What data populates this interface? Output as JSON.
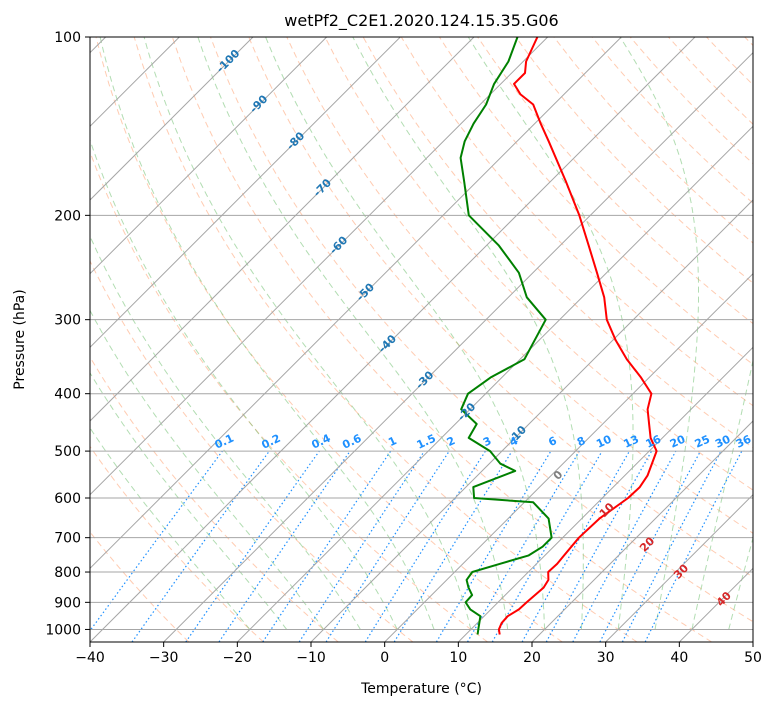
{
  "chart_data": {
    "type": "line",
    "title": "wetPf2_C2E1.2020.124.15.35.G06",
    "xlabel": "Temperature (°C)",
    "ylabel": "Pressure (hPa)",
    "xlim": [
      -40,
      50
    ],
    "ylim": [
      1050,
      100
    ],
    "y_scale": "log",
    "skew": true,
    "grid": true,
    "x_ticks": [
      -40,
      -30,
      -20,
      -10,
      0,
      10,
      20,
      30,
      40,
      50
    ],
    "y_ticks": [
      100,
      200,
      300,
      400,
      500,
      600,
      700,
      800,
      900,
      1000
    ],
    "colors": {
      "temperature": "#ff0000",
      "dewpoint": "#008000",
      "isotherm_label": "#1f77b4",
      "mixing_ratio": "#1e90ff",
      "moist_adiabat_label": "#d62728",
      "zero_label": "#7f7f7f",
      "dry_adiabat": "#ff9966",
      "moist_adiabat": "#66bb66"
    },
    "series": [
      {
        "color": "#ff0000",
        "x": [
          14.6,
          13.8,
          13.3,
          13.2,
          13.8,
          13.9,
          14.2,
          13.8,
          12.7,
          12.8,
          12.6,
          12.2,
          12.4,
          13.5,
          13.6,
          13.1,
          11.0,
          8.4,
          6.3,
          4.1,
          2.5,
          -1.2,
          -5.5,
          -9.6,
          -13.6,
          -17.0,
          -21.3,
          -26.1,
          -31.5,
          -38.0,
          -45.7,
          -49.2,
          -52.8,
          -55.9,
          -58.2,
          -58.2,
          -59.6,
          -61.4
        ],
        "p": [
          1020,
          1000,
          975,
          950,
          925,
          900,
          850,
          825,
          800,
          775,
          750,
          700,
          650,
          600,
          575,
          550,
          500,
          475,
          450,
          425,
          400,
          375,
          350,
          325,
          300,
          275,
          250,
          225,
          200,
          175,
          150,
          140,
          130,
          125,
          120,
          115,
          110,
          100
        ]
      },
      {
        "color": "#008000",
        "x": [
          11.6,
          11.0,
          9.5,
          7.2,
          5.6,
          5.5,
          4.0,
          2.7,
          2.4,
          5.0,
          7.8,
          8.5,
          8.5,
          5.5,
          1.2,
          -7.4,
          -9.0,
          -5.5,
          -8.5,
          -11.6,
          -16.3,
          -17.1,
          -21.2,
          -22.4,
          -21.5,
          -19.4,
          -21.9,
          -27.5,
          -31.9,
          -38.3,
          -46.5,
          -51.8,
          -55.4,
          -57.1,
          -58.3,
          -59.2,
          -60.9,
          -62.0,
          -64.1
        ],
        "p": [
          1020,
          1000,
          950,
          925,
          900,
          875,
          850,
          825,
          800,
          775,
          750,
          725,
          700,
          650,
          610,
          600,
          575,
          540,
          525,
          500,
          475,
          450,
          425,
          400,
          375,
          350,
          300,
          275,
          250,
          225,
          200,
          175,
          160,
          150,
          140,
          130,
          120,
          110,
          100
        ]
      }
    ],
    "annotations": {
      "isotherm_labels": [
        "-100",
        "-90",
        "-80",
        "-70",
        "-60",
        "-50",
        "-40",
        "-30",
        "-20",
        "-10"
      ],
      "mixing_ratio_labels": [
        "0.1",
        "0.2",
        "0.4",
        "0.6",
        "1",
        "1.5",
        "2",
        "3",
        "4",
        "6",
        "8",
        "10",
        "13",
        "16",
        "20",
        "25",
        "30",
        "36"
      ],
      "mixing_ratio_values": [
        0.1,
        0.2,
        0.4,
        0.6,
        1,
        1.5,
        2,
        3,
        4,
        6,
        8,
        10,
        13,
        16,
        20,
        25,
        30,
        36
      ],
      "moist_adiabat_labels": [
        "0",
        "10",
        "20",
        "30",
        "40"
      ]
    }
  }
}
